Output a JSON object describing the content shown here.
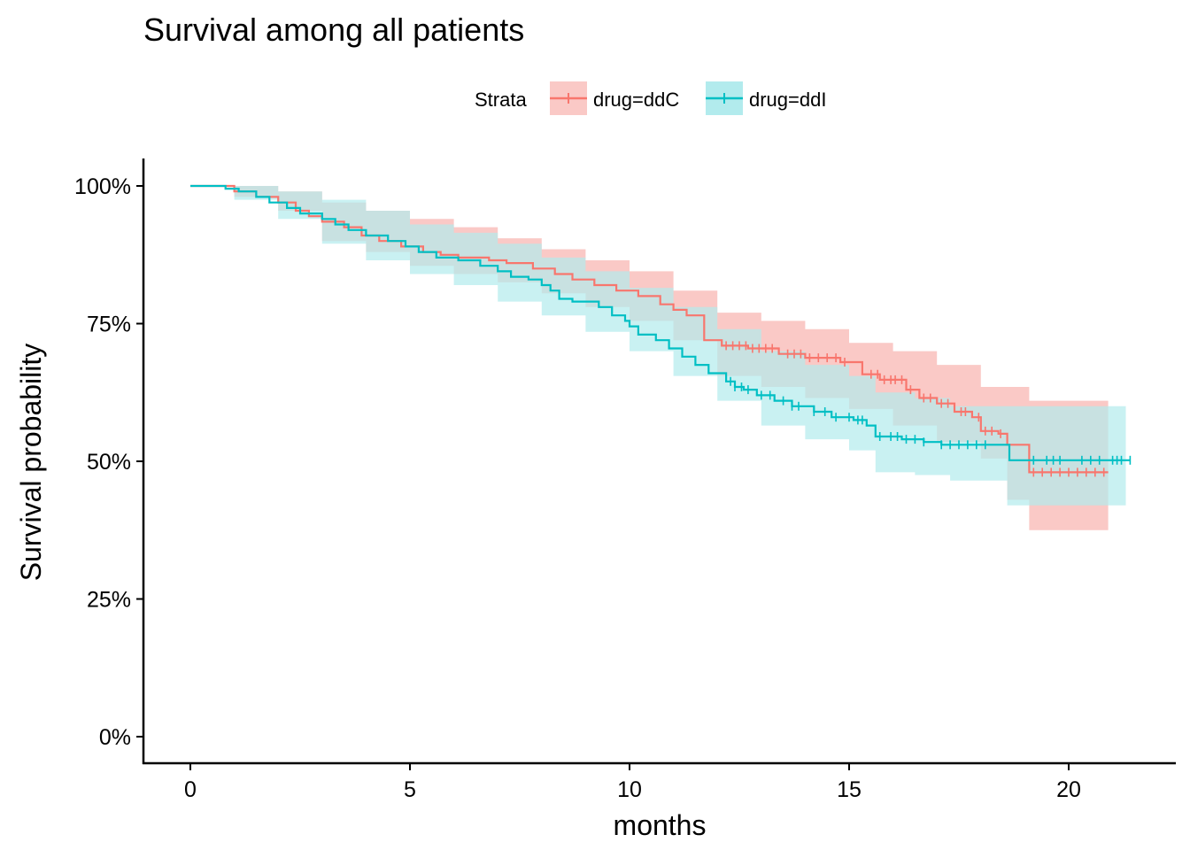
{
  "chart_data": {
    "type": "line",
    "title": "Survival among all patients",
    "xlabel": "months",
    "ylabel": "Survival probability",
    "xlim": [
      -1.05,
      22.5
    ],
    "ylim": [
      -0.05,
      1.05
    ],
    "x_ticks": [
      0,
      5,
      10,
      15,
      20
    ],
    "y_ticks": [
      0,
      0.25,
      0.5,
      0.75,
      1.0
    ],
    "y_tick_labels": [
      "0%",
      "25%",
      "50%",
      "75%",
      "100%"
    ],
    "grid": false,
    "legend": {
      "title": "Strata",
      "position": "top"
    },
    "series": [
      {
        "name": "drug=ddC",
        "color": "#F8766D",
        "fill": "#FAC9C6",
        "curve": [
          [
            0,
            1.0
          ],
          [
            0.9,
            1.0
          ],
          [
            1.0,
            0.99
          ],
          [
            1.5,
            0.98
          ],
          [
            2.0,
            0.97
          ],
          [
            2.4,
            0.955
          ],
          [
            2.7,
            0.945
          ],
          [
            3.0,
            0.935
          ],
          [
            3.5,
            0.925
          ],
          [
            3.9,
            0.91
          ],
          [
            4.3,
            0.9
          ],
          [
            4.8,
            0.89
          ],
          [
            5.3,
            0.88
          ],
          [
            5.7,
            0.875
          ],
          [
            6.1,
            0.87
          ],
          [
            6.8,
            0.865
          ],
          [
            7.2,
            0.86
          ],
          [
            7.8,
            0.85
          ],
          [
            8.3,
            0.84
          ],
          [
            8.7,
            0.83
          ],
          [
            9.2,
            0.82
          ],
          [
            9.7,
            0.81
          ],
          [
            10.2,
            0.8
          ],
          [
            10.7,
            0.785
          ],
          [
            11.0,
            0.775
          ],
          [
            11.3,
            0.765
          ],
          [
            11.7,
            0.72
          ],
          [
            12.1,
            0.71
          ],
          [
            12.7,
            0.705
          ],
          [
            13.4,
            0.695
          ],
          [
            14.0,
            0.688
          ],
          [
            14.8,
            0.68
          ],
          [
            15.3,
            0.658
          ],
          [
            15.7,
            0.648
          ],
          [
            16.3,
            0.63
          ],
          [
            16.6,
            0.615
          ],
          [
            17.0,
            0.605
          ],
          [
            17.4,
            0.59
          ],
          [
            17.8,
            0.58
          ],
          [
            18.0,
            0.555
          ],
          [
            18.4,
            0.55
          ],
          [
            18.6,
            0.53
          ],
          [
            19.1,
            0.48
          ],
          [
            20.9,
            0.48
          ]
        ],
        "lower": [
          [
            0,
            1.0
          ],
          [
            1.0,
            0.98
          ],
          [
            2.0,
            0.955
          ],
          [
            3.0,
            0.9
          ],
          [
            4.0,
            0.88
          ],
          [
            5.0,
            0.855
          ],
          [
            6.0,
            0.84
          ],
          [
            7.0,
            0.825
          ],
          [
            8.0,
            0.805
          ],
          [
            9.0,
            0.78
          ],
          [
            10.0,
            0.755
          ],
          [
            11.0,
            0.72
          ],
          [
            12.0,
            0.655
          ],
          [
            13.0,
            0.635
          ],
          [
            14.0,
            0.615
          ],
          [
            15.0,
            0.595
          ],
          [
            16.0,
            0.565
          ],
          [
            17.0,
            0.535
          ],
          [
            18.0,
            0.505
          ],
          [
            18.6,
            0.43
          ],
          [
            19.1,
            0.375
          ],
          [
            20.9,
            0.375
          ]
        ],
        "upper": [
          [
            0,
            1.0
          ],
          [
            1.0,
            1.0
          ],
          [
            2.0,
            0.99
          ],
          [
            3.0,
            0.97
          ],
          [
            4.0,
            0.955
          ],
          [
            5.0,
            0.94
          ],
          [
            6.0,
            0.925
          ],
          [
            7.0,
            0.905
          ],
          [
            8.0,
            0.885
          ],
          [
            9.0,
            0.865
          ],
          [
            10.0,
            0.845
          ],
          [
            11.0,
            0.81
          ],
          [
            12.0,
            0.77
          ],
          [
            13.0,
            0.755
          ],
          [
            14.0,
            0.74
          ],
          [
            15.0,
            0.715
          ],
          [
            16.0,
            0.7
          ],
          [
            17.0,
            0.675
          ],
          [
            18.0,
            0.635
          ],
          [
            18.6,
            0.635
          ],
          [
            19.1,
            0.61
          ],
          [
            20.9,
            0.61
          ]
        ],
        "censor": [
          12.2,
          12.35,
          12.5,
          12.65,
          12.8,
          12.95,
          13.1,
          13.25,
          13.6,
          13.75,
          13.9,
          14.1,
          14.3,
          14.5,
          14.7,
          14.9,
          15.5,
          15.65,
          15.8,
          15.95,
          16.05,
          16.2,
          16.4,
          16.7,
          16.85,
          17.1,
          17.25,
          17.55,
          17.65,
          17.95,
          18.1,
          18.25,
          18.45,
          19.2,
          19.4,
          19.6,
          19.8,
          20.0,
          20.2,
          20.4,
          20.6,
          20.8
        ]
      },
      {
        "name": "drug=ddI",
        "color": "#00BFC4",
        "fill": "#B2EBED",
        "curve": [
          [
            0,
            1.0
          ],
          [
            0.5,
            1.0
          ],
          [
            0.8,
            0.995
          ],
          [
            1.1,
            0.99
          ],
          [
            1.5,
            0.98
          ],
          [
            1.8,
            0.97
          ],
          [
            2.2,
            0.96
          ],
          [
            2.5,
            0.95
          ],
          [
            3.0,
            0.94
          ],
          [
            3.3,
            0.93
          ],
          [
            3.6,
            0.92
          ],
          [
            4.0,
            0.91
          ],
          [
            4.5,
            0.9
          ],
          [
            4.9,
            0.89
          ],
          [
            5.2,
            0.88
          ],
          [
            5.6,
            0.87
          ],
          [
            6.1,
            0.865
          ],
          [
            6.6,
            0.855
          ],
          [
            7.0,
            0.845
          ],
          [
            7.3,
            0.835
          ],
          [
            7.7,
            0.83
          ],
          [
            8.0,
            0.82
          ],
          [
            8.2,
            0.81
          ],
          [
            8.4,
            0.795
          ],
          [
            8.7,
            0.79
          ],
          [
            9.1,
            0.79
          ],
          [
            9.3,
            0.78
          ],
          [
            9.6,
            0.765
          ],
          [
            9.9,
            0.755
          ],
          [
            10.0,
            0.745
          ],
          [
            10.2,
            0.73
          ],
          [
            10.6,
            0.72
          ],
          [
            10.9,
            0.705
          ],
          [
            11.2,
            0.69
          ],
          [
            11.5,
            0.675
          ],
          [
            11.8,
            0.66
          ],
          [
            12.2,
            0.645
          ],
          [
            12.4,
            0.635
          ],
          [
            12.6,
            0.63
          ],
          [
            12.9,
            0.62
          ],
          [
            13.3,
            0.61
          ],
          [
            13.7,
            0.6
          ],
          [
            14.2,
            0.59
          ],
          [
            14.6,
            0.58
          ],
          [
            15.1,
            0.575
          ],
          [
            15.4,
            0.565
          ],
          [
            15.6,
            0.545
          ],
          [
            16.2,
            0.54
          ],
          [
            16.7,
            0.535
          ],
          [
            17.1,
            0.53
          ],
          [
            17.8,
            0.53
          ],
          [
            18.6,
            0.53
          ],
          [
            18.65,
            0.502
          ],
          [
            21.4,
            0.502
          ]
        ],
        "lower": [
          [
            0,
            1.0
          ],
          [
            1.0,
            0.975
          ],
          [
            2.0,
            0.94
          ],
          [
            3.0,
            0.895
          ],
          [
            4.0,
            0.865
          ],
          [
            5.0,
            0.84
          ],
          [
            6.0,
            0.82
          ],
          [
            7.0,
            0.79
          ],
          [
            8.0,
            0.765
          ],
          [
            9.0,
            0.735
          ],
          [
            10.0,
            0.7
          ],
          [
            11.0,
            0.655
          ],
          [
            12.0,
            0.61
          ],
          [
            13.0,
            0.565
          ],
          [
            14.0,
            0.54
          ],
          [
            15.0,
            0.52
          ],
          [
            15.6,
            0.48
          ],
          [
            16.5,
            0.475
          ],
          [
            17.3,
            0.465
          ],
          [
            18.0,
            0.465
          ],
          [
            18.6,
            0.42
          ],
          [
            21.3,
            0.42
          ]
        ],
        "upper": [
          [
            0,
            1.0
          ],
          [
            1.0,
            1.0
          ],
          [
            2.0,
            0.99
          ],
          [
            3.0,
            0.975
          ],
          [
            4.0,
            0.955
          ],
          [
            5.0,
            0.93
          ],
          [
            6.0,
            0.915
          ],
          [
            7.0,
            0.895
          ],
          [
            8.0,
            0.87
          ],
          [
            9.0,
            0.845
          ],
          [
            10.0,
            0.815
          ],
          [
            11.0,
            0.78
          ],
          [
            12.0,
            0.74
          ],
          [
            13.0,
            0.7
          ],
          [
            14.0,
            0.675
          ],
          [
            15.0,
            0.655
          ],
          [
            15.6,
            0.625
          ],
          [
            16.5,
            0.615
          ],
          [
            17.3,
            0.6
          ],
          [
            18.0,
            0.6
          ],
          [
            18.6,
            0.6
          ],
          [
            21.3,
            0.6
          ]
        ],
        "censor": [
          12.3,
          12.4,
          12.55,
          12.7,
          13.0,
          13.2,
          13.5,
          13.7,
          13.85,
          14.2,
          14.45,
          14.7,
          15.0,
          15.2,
          15.3,
          15.7,
          15.95,
          16.1,
          16.3,
          16.5,
          16.7,
          17.1,
          17.3,
          17.5,
          17.7,
          17.9,
          18.1,
          19.2,
          19.5,
          19.65,
          19.8,
          20.3,
          20.5,
          20.7,
          21.0,
          21.1,
          21.2,
          21.4
        ]
      }
    ]
  }
}
